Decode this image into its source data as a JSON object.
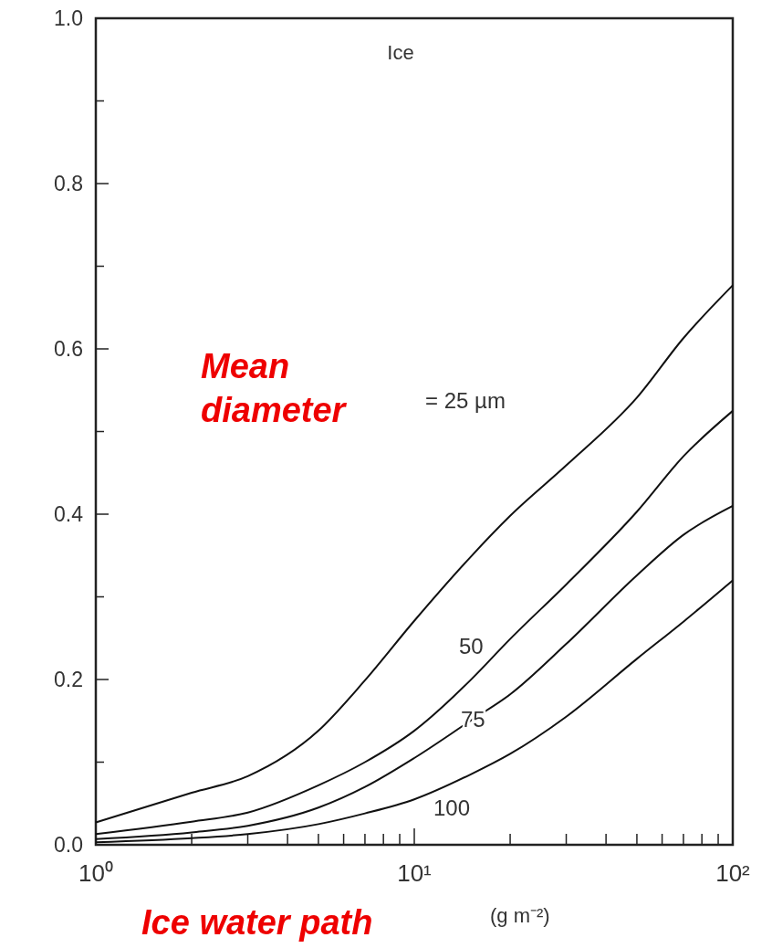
{
  "chart_data": {
    "type": "line",
    "log": "x",
    "xlabel": "Ice water path",
    "xlim": [
      1,
      100
    ],
    "xticks": [
      {
        "value": 1,
        "label": "10⁰"
      },
      {
        "value": 2,
        "label": null
      },
      {
        "value": 3,
        "label": null
      },
      {
        "value": 4,
        "label": null
      },
      {
        "value": 5,
        "label": null
      },
      {
        "value": 6,
        "label": null
      },
      {
        "value": 7,
        "label": null
      },
      {
        "value": 8,
        "label": null
      },
      {
        "value": 9,
        "label": null
      },
      {
        "value": 10,
        "label": "10¹"
      },
      {
        "value": 20,
        "label": null
      },
      {
        "value": 30,
        "label": null
      },
      {
        "value": 40,
        "label": null
      },
      {
        "value": 50,
        "label": null
      },
      {
        "value": 60,
        "label": null
      },
      {
        "value": 70,
        "label": null
      },
      {
        "value": 80,
        "label": null
      },
      {
        "value": 90,
        "label": null
      },
      {
        "value": 100,
        "label": "10²"
      }
    ],
    "ylim": [
      0,
      1
    ],
    "yticks": [
      {
        "value": 0,
        "label": "0.0"
      },
      {
        "value": 0.1,
        "label": null
      },
      {
        "value": 0.2,
        "label": "0.2"
      },
      {
        "value": 0.3,
        "label": null
      },
      {
        "value": 0.4,
        "label": "0.4"
      },
      {
        "value": 0.5,
        "label": null
      },
      {
        "value": 0.6,
        "label": "0.6"
      },
      {
        "value": 0.7,
        "label": null
      },
      {
        "value": 0.8,
        "label": "0.8"
      },
      {
        "value": 0.9,
        "label": null
      },
      {
        "value": 1,
        "label": "1.0"
      }
    ],
    "grid": false,
    "marker": "none",
    "line_style": "solid",
    "x": [
      1,
      2,
      3,
      5,
      7,
      10,
      15,
      20,
      30,
      50,
      70,
      100
    ],
    "series": [
      {
        "color": "#111111",
        "values": [
          0.027,
          0.063,
          0.083,
          0.138,
          0.199,
          0.271,
          0.348,
          0.398,
          0.459,
          0.541,
          0.613,
          0.677
        ]
      },
      {
        "color": "#111111",
        "values": [
          0.013,
          0.028,
          0.039,
          0.072,
          0.1,
          0.138,
          0.199,
          0.249,
          0.315,
          0.403,
          0.47,
          0.525
        ]
      },
      {
        "color": "#111111",
        "values": [
          0.007,
          0.015,
          0.023,
          0.045,
          0.07,
          0.105,
          0.15,
          0.182,
          0.243,
          0.326,
          0.375,
          0.41
        ]
      },
      {
        "color": "#111111",
        "values": [
          0.003,
          0.008,
          0.013,
          0.025,
          0.038,
          0.055,
          0.085,
          0.11,
          0.155,
          0.225,
          0.27,
          0.32
        ]
      }
    ],
    "annotations": [
      "Ice",
      "Mean diameter",
      "(g m⁻²)",
      "= 25 µm",
      "50",
      "75",
      "100"
    ]
  }
}
